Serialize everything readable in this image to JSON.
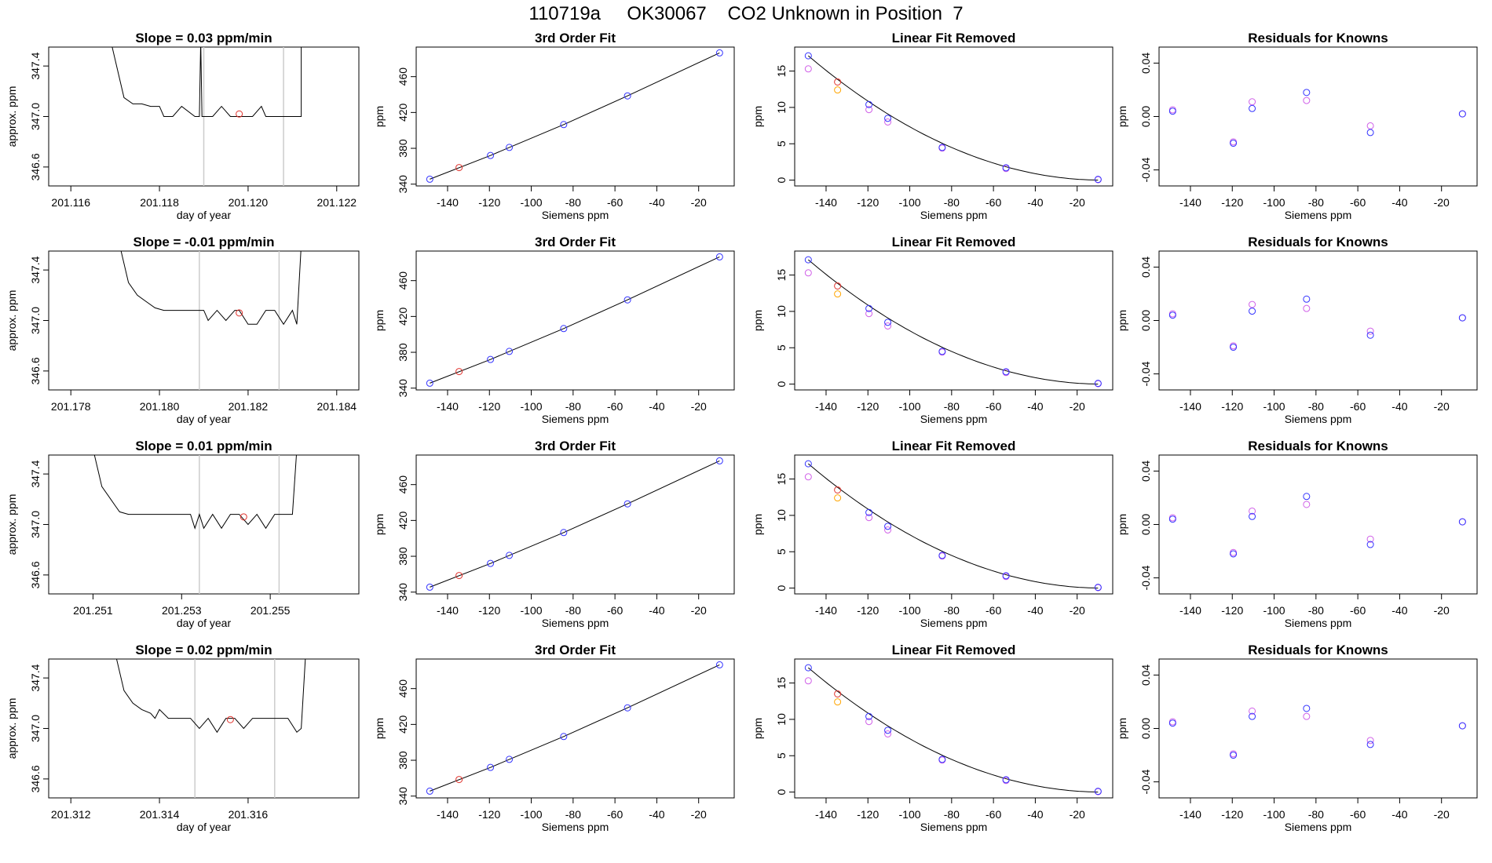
{
  "header": {
    "title": "110719a     OK30067    CO2 Unknown in Position  7"
  },
  "colors": {
    "known": "#3333ff",
    "unknown": "#e0302a",
    "fit2": "#d060e8",
    "unknown2": "#ffa500",
    "vline": "#cccccc",
    "line": "#000000"
  },
  "chart_data": [
    {
      "type": "line",
      "row": 0,
      "panel": "timeseries",
      "title": "Slope =  0.03  ppm/min",
      "xlabel": "day of year",
      "ylabel": "approx. ppm",
      "xlim": [
        201.1155,
        201.1225
      ],
      "ylim": [
        346.45,
        347.55
      ],
      "xticks": [
        "201.116",
        "201.118",
        "201.120",
        "201.122"
      ],
      "yticks": [
        "346.6",
        "347.0",
        "347.4"
      ],
      "vlines": [
        201.119,
        201.1208
      ],
      "series": [
        {
          "name": "trace",
          "x": [
            201.1169,
            201.1172,
            201.1174,
            201.1176,
            201.1178,
            201.118,
            201.1181,
            201.1183,
            201.1185,
            201.1188,
            201.1189,
            201.11893,
            201.11896,
            201.119,
            201.1192,
            201.1194,
            201.1196,
            201.1197,
            201.1199,
            201.12,
            201.1201,
            201.1203,
            201.1204,
            201.1206,
            201.1208,
            201.121,
            201.1212,
            201.1212,
            201.1214
          ],
          "y": [
            347.6,
            347.15,
            347.1,
            347.1,
            347.08,
            347.08,
            347.0,
            347.0,
            347.08,
            347.0,
            347.0,
            347.6,
            347.0,
            347.0,
            347.0,
            347.08,
            347.0,
            347.0,
            347.0,
            347.0,
            347.0,
            347.08,
            347.0,
            347.0,
            347.0,
            347.0,
            347.0,
            347.6,
            347.6
          ]
        }
      ],
      "points": [
        {
          "x": 201.1198,
          "y": 347.02,
          "color": "unknown"
        }
      ]
    },
    {
      "type": "scatter",
      "row": 0,
      "panel": "fit",
      "title": "3rd Order Fit",
      "xlabel": "Siemens ppm",
      "ylabel": "ppm",
      "xlim": [
        -155,
        -3
      ],
      "ylim": [
        338,
        493
      ],
      "xticks": [
        "-140",
        "-120",
        "-100",
        "-80",
        "-60",
        "-40",
        "-20"
      ],
      "yticks": [
        "340",
        "380",
        "420",
        "460"
      ],
      "known_x": [
        -148.5,
        -119.5,
        -110.5,
        -84.5,
        -54,
        -10
      ],
      "known_y": [
        345.5,
        372,
        381,
        406.5,
        438.5,
        486.5
      ],
      "unknown_x": [
        -134.5
      ],
      "unknown_y": [
        358.5
      ]
    },
    {
      "type": "scatter",
      "row": 0,
      "panel": "linear_removed",
      "title": "Linear Fit Removed",
      "xlabel": "Siemens ppm",
      "ylabel": "ppm",
      "xlim": [
        -155,
        -3
      ],
      "ylim": [
        -0.8,
        18.3
      ],
      "xticks": [
        "-140",
        "-120",
        "-100",
        "-80",
        "-60",
        "-40",
        "-20"
      ],
      "yticks": [
        "0",
        "5",
        "10",
        "15"
      ],
      "known_x": [
        -148.5,
        -134.5,
        -119.5,
        -110.5,
        -84.5,
        -54,
        -10
      ],
      "known_y": [
        17.1,
        13.5,
        10.4,
        8.5,
        4.5,
        1.7,
        0.1
      ],
      "fit_x": [
        -148.5,
        -119.5,
        -110.5,
        -84.5,
        -54,
        -10
      ],
      "fit_y": [
        15.3,
        9.7,
        8.0,
        4.4,
        1.6,
        0.05
      ],
      "unknown_x": [
        -134.5
      ],
      "unknown_y": [
        12.4
      ]
    },
    {
      "type": "scatter",
      "row": 0,
      "panel": "residuals",
      "title": "Residuals for Knowns",
      "xlabel": "Siemens ppm",
      "ylabel": "ppm",
      "xlim": [
        -155,
        -3
      ],
      "ylim": [
        -0.052,
        0.052
      ],
      "xticks": [
        "-140",
        "-120",
        "-100",
        "-80",
        "-60",
        "-40",
        "-20"
      ],
      "yticks": [
        "-0.04",
        "0.00",
        "0.04"
      ],
      "known_x": [
        -148.5,
        -119.5,
        -110.5,
        -84.5,
        -54,
        -10
      ],
      "known_y": [
        0.004,
        -0.02,
        0.006,
        0.018,
        -0.012,
        0.002
      ],
      "fit_x": [
        -148.5,
        -119.5,
        -110.5,
        -84.5,
        -54,
        -10
      ],
      "fit_y": [
        0.005,
        -0.019,
        0.011,
        0.012,
        -0.007,
        0.002
      ]
    },
    {
      "type": "line",
      "row": 1,
      "panel": "timeseries",
      "title": "Slope =  -0.01  ppm/min",
      "xlabel": "day of year",
      "ylabel": "approx. ppm",
      "xlim": [
        201.1775,
        201.1845
      ],
      "ylim": [
        346.45,
        347.55
      ],
      "xticks": [
        "201.178",
        "201.180",
        "201.182",
        "201.184"
      ],
      "yticks": [
        "346.6",
        "347.0",
        "347.4"
      ],
      "vlines": [
        201.1809,
        201.1827
      ],
      "series": [
        {
          "name": "trace",
          "x": [
            201.1791,
            201.1793,
            201.1795,
            201.1797,
            201.1799,
            201.1801,
            201.1803,
            201.1806,
            201.1808,
            201.181,
            201.1811,
            201.1813,
            201.1815,
            201.1817,
            201.1818,
            201.182,
            201.1822,
            201.1824,
            201.1826,
            201.1828,
            201.183,
            201.1831,
            201.1832
          ],
          "y": [
            347.6,
            347.3,
            347.2,
            347.15,
            347.1,
            347.08,
            347.08,
            347.08,
            347.08,
            347.08,
            347.0,
            347.08,
            347.0,
            347.08,
            347.08,
            346.97,
            346.97,
            347.08,
            347.08,
            346.97,
            347.08,
            346.97,
            347.6
          ]
        }
      ],
      "points": [
        {
          "x": 201.1818,
          "y": 347.06,
          "color": "unknown"
        }
      ]
    },
    {
      "type": "scatter",
      "row": 1,
      "panel": "fit",
      "title": "3rd Order Fit",
      "xlabel": "Siemens ppm",
      "ylabel": "ppm",
      "xlim": [
        -155,
        -3
      ],
      "ylim": [
        338,
        493
      ],
      "xticks": [
        "-140",
        "-120",
        "-100",
        "-80",
        "-60",
        "-40",
        "-20"
      ],
      "yticks": [
        "340",
        "380",
        "420",
        "460"
      ],
      "known_x": [
        -148.5,
        -119.5,
        -110.5,
        -84.5,
        -54,
        -10
      ],
      "known_y": [
        345.5,
        372,
        381,
        406.5,
        438.5,
        486.5
      ],
      "unknown_x": [
        -134.5
      ],
      "unknown_y": [
        358.5
      ]
    },
    {
      "type": "scatter",
      "row": 1,
      "panel": "linear_removed",
      "title": "Linear Fit Removed",
      "xlabel": "Siemens ppm",
      "ylabel": "ppm",
      "xlim": [
        -155,
        -3
      ],
      "ylim": [
        -0.8,
        18.3
      ],
      "xticks": [
        "-140",
        "-120",
        "-100",
        "-80",
        "-60",
        "-40",
        "-20"
      ],
      "yticks": [
        "0",
        "5",
        "10",
        "15"
      ],
      "known_x": [
        -148.5,
        -134.5,
        -119.5,
        -110.5,
        -84.5,
        -54,
        -10
      ],
      "known_y": [
        17.1,
        13.5,
        10.4,
        8.5,
        4.5,
        1.7,
        0.1
      ],
      "fit_x": [
        -148.5,
        -119.5,
        -110.5,
        -84.5,
        -54,
        -10
      ],
      "fit_y": [
        15.3,
        9.7,
        8.0,
        4.4,
        1.6,
        0.05
      ],
      "unknown_x": [
        -134.5
      ],
      "unknown_y": [
        12.4
      ]
    },
    {
      "type": "scatter",
      "row": 1,
      "panel": "residuals",
      "title": "Residuals for Knowns",
      "xlabel": "Siemens ppm",
      "ylabel": "ppm",
      "xlim": [
        -155,
        -3
      ],
      "ylim": [
        -0.052,
        0.052
      ],
      "xticks": [
        "-140",
        "-120",
        "-100",
        "-80",
        "-60",
        "-40",
        "-20"
      ],
      "yticks": [
        "-0.04",
        "0.00",
        "0.04"
      ],
      "known_x": [
        -148.5,
        -119.5,
        -110.5,
        -84.5,
        -54,
        -10
      ],
      "known_y": [
        0.004,
        -0.02,
        0.007,
        0.016,
        -0.011,
        0.002
      ],
      "fit_x": [
        -148.5,
        -119.5,
        -110.5,
        -84.5,
        -54,
        -10
      ],
      "fit_y": [
        0.005,
        -0.019,
        0.012,
        0.009,
        -0.008,
        0.002
      ]
    },
    {
      "type": "line",
      "row": 2,
      "panel": "timeseries",
      "title": "Slope =  0.01  ppm/min",
      "xlabel": "day of year",
      "ylabel": "approx. ppm",
      "xlim": [
        201.25,
        201.257
      ],
      "ylim": [
        346.45,
        347.55
      ],
      "xticks": [
        "201.251",
        "201.253",
        "201.255"
      ],
      "yticks": [
        "346.6",
        "347.0",
        "347.4"
      ],
      "vlines": [
        201.2534,
        201.2552
      ],
      "series": [
        {
          "name": "trace",
          "x": [
            201.251,
            201.2512,
            201.2514,
            201.2515,
            201.2516,
            201.2518,
            201.252,
            201.2525,
            201.253,
            201.2532,
            201.2533,
            201.2534,
            201.2535,
            201.2537,
            201.2539,
            201.2541,
            201.2543,
            201.2545,
            201.2547,
            201.2549,
            201.2551,
            201.2553,
            201.2555,
            201.2556
          ],
          "y": [
            347.6,
            347.3,
            347.2,
            347.15,
            347.1,
            347.08,
            347.08,
            347.08,
            347.08,
            347.08,
            346.97,
            347.08,
            346.97,
            347.08,
            346.97,
            347.08,
            347.08,
            347.0,
            347.08,
            346.97,
            347.08,
            347.08,
            347.08,
            347.6
          ]
        }
      ],
      "points": [
        {
          "x": 201.2544,
          "y": 347.06,
          "color": "unknown"
        }
      ]
    },
    {
      "type": "scatter",
      "row": 2,
      "panel": "fit",
      "title": "3rd Order Fit",
      "xlabel": "Siemens ppm",
      "ylabel": "ppm",
      "xlim": [
        -155,
        -3
      ],
      "ylim": [
        338,
        493
      ],
      "xticks": [
        "-140",
        "-120",
        "-100",
        "-80",
        "-60",
        "-40",
        "-20"
      ],
      "yticks": [
        "340",
        "380",
        "420",
        "460"
      ],
      "known_x": [
        -148.5,
        -119.5,
        -110.5,
        -84.5,
        -54,
        -10
      ],
      "known_y": [
        345.5,
        372,
        381,
        406.5,
        438.5,
        486.5
      ],
      "unknown_x": [
        -134.5
      ],
      "unknown_y": [
        358.5
      ]
    },
    {
      "type": "scatter",
      "row": 2,
      "panel": "linear_removed",
      "title": "Linear Fit Removed",
      "xlabel": "Siemens ppm",
      "ylabel": "ppm",
      "xlim": [
        -155,
        -3
      ],
      "ylim": [
        -0.8,
        18.3
      ],
      "xticks": [
        "-140",
        "-120",
        "-100",
        "-80",
        "-60",
        "-40",
        "-20"
      ],
      "yticks": [
        "0",
        "5",
        "10",
        "15"
      ],
      "known_x": [
        -148.5,
        -134.5,
        -119.5,
        -110.5,
        -84.5,
        -54,
        -10
      ],
      "known_y": [
        17.1,
        13.5,
        10.4,
        8.5,
        4.5,
        1.7,
        0.1
      ],
      "fit_x": [
        -148.5,
        -119.5,
        -110.5,
        -84.5,
        -54,
        -10
      ],
      "fit_y": [
        15.3,
        9.7,
        8.0,
        4.4,
        1.6,
        0.05
      ],
      "unknown_x": [
        -134.5
      ],
      "unknown_y": [
        12.4
      ]
    },
    {
      "type": "scatter",
      "row": 2,
      "panel": "residuals",
      "title": "Residuals for Knowns",
      "xlabel": "Siemens ppm",
      "ylabel": "ppm",
      "xlim": [
        -155,
        -3
      ],
      "ylim": [
        -0.052,
        0.052
      ],
      "xticks": [
        "-140",
        "-120",
        "-100",
        "-80",
        "-60",
        "-40",
        "-20"
      ],
      "yticks": [
        "-0.04",
        "0.00",
        "0.04"
      ],
      "known_x": [
        -148.5,
        -119.5,
        -110.5,
        -84.5,
        -54,
        -10
      ],
      "known_y": [
        0.004,
        -0.022,
        0.006,
        0.021,
        -0.015,
        0.002
      ],
      "fit_x": [
        -148.5,
        -119.5,
        -110.5,
        -84.5,
        -54,
        -10
      ],
      "fit_y": [
        0.005,
        -0.021,
        0.01,
        0.015,
        -0.011,
        0.002
      ]
    },
    {
      "type": "line",
      "row": 3,
      "panel": "timeseries",
      "title": "Slope =  0.02  ppm/min",
      "xlabel": "day of year",
      "ylabel": "approx. ppm",
      "xlim": [
        201.3115,
        201.3185
      ],
      "ylim": [
        346.45,
        347.55
      ],
      "xticks": [
        "201.312",
        "201.314",
        "201.316"
      ],
      "yticks": [
        "346.6",
        "347.0",
        "347.4"
      ],
      "vlines": [
        201.3148,
        201.3166
      ],
      "series": [
        {
          "name": "trace",
          "x": [
            201.313,
            201.3132,
            201.3134,
            201.3136,
            201.3138,
            201.3139,
            201.314,
            201.3142,
            201.3145,
            201.3147,
            201.3149,
            201.3151,
            201.3153,
            201.3155,
            201.3157,
            201.3159,
            201.3161,
            201.3163,
            201.3165,
            201.3167,
            201.3169,
            201.3171,
            201.3172,
            201.3173
          ],
          "y": [
            347.6,
            347.3,
            347.2,
            347.15,
            347.12,
            347.08,
            347.15,
            347.08,
            347.08,
            347.08,
            347.0,
            347.08,
            346.97,
            347.08,
            347.08,
            347.0,
            347.08,
            347.08,
            347.08,
            347.08,
            347.08,
            346.97,
            347.0,
            347.6
          ]
        }
      ],
      "points": [
        {
          "x": 201.3156,
          "y": 347.07,
          "color": "unknown"
        }
      ]
    },
    {
      "type": "scatter",
      "row": 3,
      "panel": "fit",
      "title": "3rd Order Fit",
      "xlabel": "Siemens ppm",
      "ylabel": "ppm",
      "xlim": [
        -155,
        -3
      ],
      "ylim": [
        338,
        493
      ],
      "xticks": [
        "-140",
        "-120",
        "-100",
        "-80",
        "-60",
        "-40",
        "-20"
      ],
      "yticks": [
        "340",
        "380",
        "420",
        "460"
      ],
      "known_x": [
        -148.5,
        -119.5,
        -110.5,
        -84.5,
        -54,
        -10
      ],
      "known_y": [
        345.5,
        372,
        381,
        406.5,
        438.5,
        486.5
      ],
      "unknown_x": [
        -134.5
      ],
      "unknown_y": [
        358.5
      ]
    },
    {
      "type": "scatter",
      "row": 3,
      "panel": "linear_removed",
      "title": "Linear Fit Removed",
      "xlabel": "Siemens ppm",
      "ylabel": "ppm",
      "xlim": [
        -155,
        -3
      ],
      "ylim": [
        -0.8,
        18.3
      ],
      "xticks": [
        "-140",
        "-120",
        "-100",
        "-80",
        "-60",
        "-40",
        "-20"
      ],
      "yticks": [
        "0",
        "5",
        "10",
        "15"
      ],
      "known_x": [
        -148.5,
        -134.5,
        -119.5,
        -110.5,
        -84.5,
        -54,
        -10
      ],
      "known_y": [
        17.1,
        13.5,
        10.4,
        8.5,
        4.5,
        1.7,
        0.1
      ],
      "fit_x": [
        -148.5,
        -119.5,
        -110.5,
        -84.5,
        -54,
        -10
      ],
      "fit_y": [
        15.3,
        9.7,
        8.0,
        4.4,
        1.6,
        0.05
      ],
      "unknown_x": [
        -134.5
      ],
      "unknown_y": [
        12.4
      ]
    },
    {
      "type": "scatter",
      "row": 3,
      "panel": "residuals",
      "title": "Residuals for Knowns",
      "xlabel": "Siemens ppm",
      "ylabel": "ppm",
      "xlim": [
        -155,
        -3
      ],
      "ylim": [
        -0.052,
        0.052
      ],
      "xticks": [
        "-140",
        "-120",
        "-100",
        "-80",
        "-60",
        "-40",
        "-20"
      ],
      "yticks": [
        "-0.04",
        "0.00",
        "0.04"
      ],
      "known_x": [
        -148.5,
        -119.5,
        -110.5,
        -84.5,
        -54,
        -10
      ],
      "known_y": [
        0.004,
        -0.02,
        0.009,
        0.015,
        -0.012,
        0.002
      ],
      "fit_x": [
        -148.5,
        -119.5,
        -110.5,
        -84.5,
        -54,
        -10
      ],
      "fit_y": [
        0.005,
        -0.019,
        0.013,
        0.009,
        -0.009,
        0.002
      ]
    }
  ]
}
